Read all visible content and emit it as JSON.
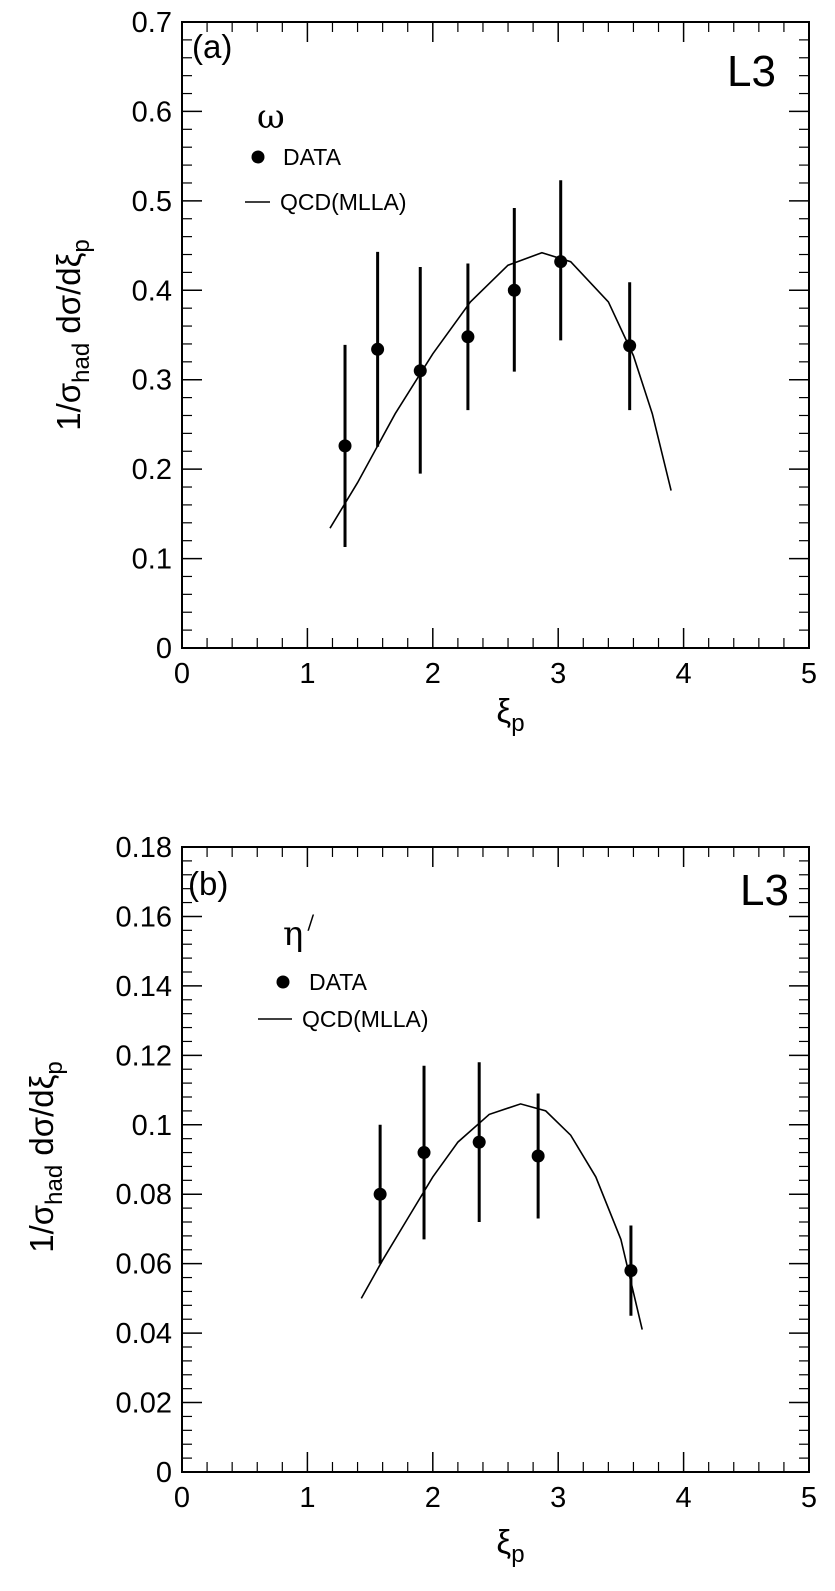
{
  "chart_data": [
    {
      "type": "scatter",
      "panel_label": "(a)",
      "experiment_label": "L3",
      "particle_label": "ω",
      "ylabel_parts": [
        "1/σ",
        "had",
        "  dσ/dξ",
        "p"
      ],
      "xlabel_parts": [
        "ξ",
        "p"
      ],
      "xlim": [
        0,
        5
      ],
      "ylim": [
        0,
        0.7
      ],
      "x_ticks": [
        "0",
        "1",
        "2",
        "3",
        "4",
        "5"
      ],
      "x_tick_values": [
        0,
        1,
        2,
        3,
        4,
        5
      ],
      "y_ticks": [
        "0",
        "0.1",
        "0.2",
        "0.3",
        "0.4",
        "0.5",
        "0.6",
        "0.7"
      ],
      "y_tick_values": [
        0,
        0.1,
        0.2,
        0.3,
        0.4,
        0.5,
        0.6,
        0.7
      ],
      "legend": {
        "placement": "top-left",
        "data_label": "DATA",
        "curve_label": "QCD(MLLA)"
      },
      "series": [
        {
          "name": "DATA",
          "kind": "points",
          "points": [
            {
              "x": 1.3,
              "y": 0.226,
              "err_low": 0.113,
              "err_high": 0.113
            },
            {
              "x": 1.56,
              "y": 0.334,
              "err_low": 0.109,
              "err_high": 0.109
            },
            {
              "x": 1.9,
              "y": 0.31,
              "err_low": 0.115,
              "err_high": 0.116
            },
            {
              "x": 2.28,
              "y": 0.348,
              "err_low": 0.082,
              "err_high": 0.082
            },
            {
              "x": 2.65,
              "y": 0.4,
              "err_low": 0.091,
              "err_high": 0.092
            },
            {
              "x": 3.02,
              "y": 0.432,
              "err_low": 0.088,
              "err_high": 0.091
            },
            {
              "x": 3.57,
              "y": 0.338,
              "err_low": 0.072,
              "err_high": 0.071
            }
          ]
        },
        {
          "name": "QCD(MLLA)",
          "kind": "curve",
          "points": [
            {
              "x": 1.18,
              "y": 0.134
            },
            {
              "x": 1.4,
              "y": 0.185
            },
            {
              "x": 1.7,
              "y": 0.262
            },
            {
              "x": 2.0,
              "y": 0.329
            },
            {
              "x": 2.3,
              "y": 0.387
            },
            {
              "x": 2.6,
              "y": 0.428
            },
            {
              "x": 2.87,
              "y": 0.442
            },
            {
              "x": 3.1,
              "y": 0.432
            },
            {
              "x": 3.4,
              "y": 0.387
            },
            {
              "x": 3.6,
              "y": 0.327
            },
            {
              "x": 3.75,
              "y": 0.262
            },
            {
              "x": 3.9,
              "y": 0.176
            }
          ]
        }
      ]
    },
    {
      "type": "scatter",
      "panel_label": "(b)",
      "experiment_label": "L3",
      "particle_label": "η",
      "particle_prime": "/",
      "ylabel_parts": [
        "1/σ",
        "had",
        "  dσ/dξ",
        "p"
      ],
      "xlabel_parts": [
        "ξ",
        "p"
      ],
      "xlim": [
        0,
        5
      ],
      "ylim": [
        0,
        0.18
      ],
      "x_ticks": [
        "0",
        "1",
        "2",
        "3",
        "4",
        "5"
      ],
      "x_tick_values": [
        0,
        1,
        2,
        3,
        4,
        5
      ],
      "y_ticks": [
        "0",
        "0.02",
        "0.04",
        "0.06",
        "0.08",
        "0.1",
        "0.12",
        "0.14",
        "0.16",
        "0.18"
      ],
      "y_tick_values": [
        0,
        0.02,
        0.04,
        0.06,
        0.08,
        0.1,
        0.12,
        0.14,
        0.16,
        0.18
      ],
      "legend": {
        "placement": "top-left",
        "data_label": "DATA",
        "curve_label": "QCD(MLLA)"
      },
      "series": [
        {
          "name": "DATA",
          "kind": "points",
          "points": [
            {
              "x": 1.58,
              "y": 0.08,
              "err_low": 0.02,
              "err_high": 0.02
            },
            {
              "x": 1.93,
              "y": 0.092,
              "err_low": 0.025,
              "err_high": 0.025
            },
            {
              "x": 2.37,
              "y": 0.095,
              "err_low": 0.023,
              "err_high": 0.023
            },
            {
              "x": 2.84,
              "y": 0.091,
              "err_low": 0.018,
              "err_high": 0.018
            },
            {
              "x": 3.58,
              "y": 0.058,
              "err_low": 0.013,
              "err_high": 0.013
            }
          ]
        },
        {
          "name": "QCD(MLLA)",
          "kind": "curve",
          "points": [
            {
              "x": 1.43,
              "y": 0.05
            },
            {
              "x": 1.6,
              "y": 0.061
            },
            {
              "x": 1.8,
              "y": 0.073
            },
            {
              "x": 2.0,
              "y": 0.085
            },
            {
              "x": 2.2,
              "y": 0.095
            },
            {
              "x": 2.45,
              "y": 0.103
            },
            {
              "x": 2.7,
              "y": 0.106
            },
            {
              "x": 2.9,
              "y": 0.104
            },
            {
              "x": 3.1,
              "y": 0.097
            },
            {
              "x": 3.3,
              "y": 0.085
            },
            {
              "x": 3.5,
              "y": 0.067
            },
            {
              "x": 3.67,
              "y": 0.041
            }
          ]
        }
      ]
    }
  ]
}
